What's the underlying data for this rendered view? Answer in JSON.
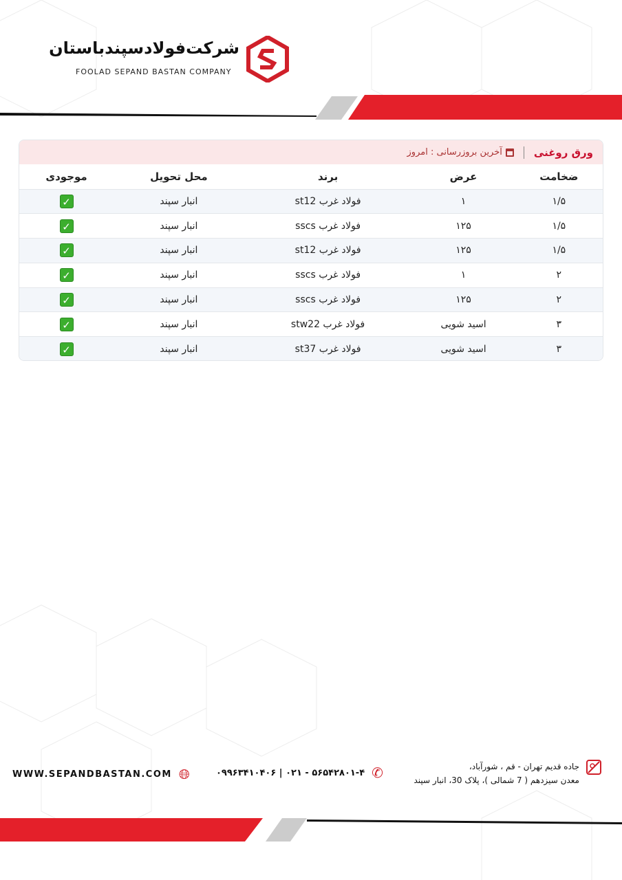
{
  "header": {
    "company_fa": "شرکت‌فولادسپندباستان",
    "company_en": "FOOLAD SEPAND BASTAN COMPANY",
    "brand_color": "#e4202a"
  },
  "card": {
    "title": "ورق روغنی",
    "update_label": "آخرین بروزرسانی : امروز",
    "update_icon": "calendar-icon"
  },
  "table": {
    "columns": [
      "ضخامت",
      "عرض",
      "برند",
      "محل تحویل",
      "موجودی"
    ],
    "rows": [
      {
        "thickness": "۱/۵",
        "width": "۱",
        "brand": "فولاد غرب st12",
        "location": "انبار سپند",
        "in_stock": true
      },
      {
        "thickness": "۱/۵",
        "width": "۱۲۵",
        "brand": "فولاد غرب sscs",
        "location": "انبار سپند",
        "in_stock": true
      },
      {
        "thickness": "۱/۵",
        "width": "۱۲۵",
        "brand": "فولاد غرب st12",
        "location": "انبار سپند",
        "in_stock": true
      },
      {
        "thickness": "۲",
        "width": "۱",
        "brand": "فولاد غرب sscs",
        "location": "انبار سپند",
        "in_stock": true
      },
      {
        "thickness": "۲",
        "width": "۱۲۵",
        "brand": "فولاد غرب sscs",
        "location": "انبار سپند",
        "in_stock": true
      },
      {
        "thickness": "۳",
        "width": "اسید شویی",
        "brand": "فولاد غرب stw22",
        "location": "انبار سپند",
        "in_stock": true
      },
      {
        "thickness": "۳",
        "width": "اسید شویی",
        "brand": "فولاد غرب st37",
        "location": "انبار سپند",
        "in_stock": true
      }
    ],
    "check_mark": "✓"
  },
  "footer": {
    "website": "WWW.SEPANDBASTAN.COM",
    "phones": "۰۹۹۶۳۴۱۰۴۰۶ | ۰۲۱ - ۵۶۵۴۲۸۰۱-۴",
    "address_line1": "جاده قدیم تهران - قم ، شورآباد،",
    "address_line2": "معدن سیزدهم ( 7 شمالی )، پلاک 30، انبار سپند"
  }
}
